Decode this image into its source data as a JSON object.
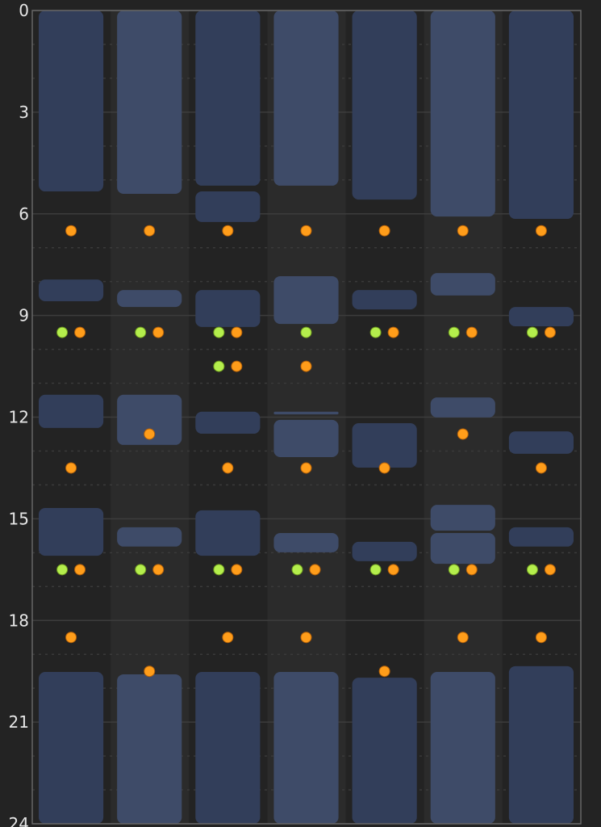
{
  "chart_data": {
    "type": "bar",
    "orientation": "vertical-range",
    "y_axis": {
      "ticks": [
        "0",
        "3",
        "6",
        "9",
        "12",
        "15",
        "18",
        "21",
        "24"
      ],
      "range": [
        0,
        24
      ],
      "inverted": true
    },
    "grid": {
      "major_every": 3,
      "minor_every": 1,
      "minor_style": "dotted"
    },
    "colors": {
      "bar_odd": "#323e5a",
      "bar_even": "#3e4b68",
      "dot_orange": "#ff9d1a",
      "dot_green": "#b4ee4c",
      "background": "#232323",
      "column_alt": "#2b2b2b"
    },
    "columns": [
      {
        "bars": [
          [
            0,
            5.34
          ],
          [
            7.94,
            8.58
          ],
          [
            11.34,
            12.32
          ],
          [
            14.68,
            16.09
          ],
          [
            19.52,
            24
          ]
        ],
        "dots": [
          {
            "h": 6.5,
            "colors": [
              "orange"
            ]
          },
          {
            "h": 9.5,
            "colors": [
              "green",
              "orange"
            ]
          },
          {
            "h": 13.5,
            "colors": [
              "orange"
            ]
          },
          {
            "h": 16.5,
            "colors": [
              "green",
              "orange"
            ]
          },
          {
            "h": 18.5,
            "colors": [
              "orange"
            ]
          }
        ]
      },
      {
        "bars": [
          [
            0,
            5.41
          ],
          [
            8.25,
            8.75
          ],
          [
            11.34,
            12.82
          ],
          [
            15.25,
            15.82
          ],
          [
            19.59,
            24
          ]
        ],
        "dots": [
          {
            "h": 6.5,
            "colors": [
              "orange"
            ]
          },
          {
            "h": 9.5,
            "colors": [
              "green",
              "orange"
            ]
          },
          {
            "h": 12.5,
            "colors": [
              "orange"
            ]
          },
          {
            "h": 16.5,
            "colors": [
              "green",
              "orange"
            ]
          },
          {
            "h": 19.5,
            "colors": [
              "orange"
            ]
          }
        ]
      },
      {
        "bars": [
          [
            0,
            5.17
          ],
          [
            5.34,
            6.24
          ],
          [
            8.25,
            9.34
          ],
          [
            11.84,
            12.49
          ],
          [
            14.75,
            16.09
          ],
          [
            19.52,
            24
          ]
        ],
        "dots": [
          {
            "h": 6.5,
            "colors": [
              "orange"
            ]
          },
          {
            "h": 9.5,
            "colors": [
              "green",
              "orange"
            ]
          },
          {
            "h": 10.5,
            "colors": [
              "green",
              "orange"
            ]
          },
          {
            "h": 13.5,
            "colors": [
              "orange"
            ]
          },
          {
            "h": 16.5,
            "colors": [
              "green",
              "orange"
            ]
          },
          {
            "h": 18.5,
            "colors": [
              "orange"
            ]
          }
        ]
      },
      {
        "bars": [
          [
            0,
            5.17
          ],
          [
            7.84,
            9.25
          ],
          [
            11.84,
            11.92
          ],
          [
            12.08,
            13.18
          ],
          [
            15.42,
            15.99
          ],
          [
            19.52,
            24
          ]
        ],
        "dots": [
          {
            "h": 6.5,
            "colors": [
              "orange"
            ]
          },
          {
            "h": 9.5,
            "colors": [
              "green"
            ]
          },
          {
            "h": 10.5,
            "colors": [
              "orange"
            ]
          },
          {
            "h": 13.5,
            "colors": [
              "orange"
            ]
          },
          {
            "h": 16.5,
            "colors": [
              "green",
              "orange"
            ]
          },
          {
            "h": 18.5,
            "colors": [
              "orange"
            ]
          }
        ]
      },
      {
        "bars": [
          [
            0,
            5.58
          ],
          [
            8.25,
            8.82
          ],
          [
            12.18,
            13.49
          ],
          [
            15.68,
            16.25
          ],
          [
            19.69,
            24
          ]
        ],
        "dots": [
          {
            "h": 6.5,
            "colors": [
              "orange"
            ]
          },
          {
            "h": 9.5,
            "colors": [
              "green",
              "orange"
            ]
          },
          {
            "h": 13.5,
            "colors": [
              "orange"
            ]
          },
          {
            "h": 16.5,
            "colors": [
              "green",
              "orange"
            ]
          },
          {
            "h": 19.5,
            "colors": [
              "orange"
            ]
          }
        ]
      },
      {
        "bars": [
          [
            0,
            6.08
          ],
          [
            7.75,
            8.41
          ],
          [
            11.42,
            12.01
          ],
          [
            14.59,
            15.35
          ],
          [
            15.42,
            16.33
          ],
          [
            19.52,
            24
          ]
        ],
        "dots": [
          {
            "h": 6.5,
            "colors": [
              "orange"
            ]
          },
          {
            "h": 9.5,
            "colors": [
              "green",
              "orange"
            ]
          },
          {
            "h": 12.5,
            "colors": [
              "orange"
            ]
          },
          {
            "h": 16.5,
            "colors": [
              "green",
              "orange"
            ]
          },
          {
            "h": 18.5,
            "colors": [
              "orange"
            ]
          }
        ]
      },
      {
        "bars": [
          [
            0,
            6.15
          ],
          [
            8.75,
            9.32
          ],
          [
            12.42,
            13.08
          ],
          [
            15.25,
            15.82
          ],
          [
            19.35,
            24
          ]
        ],
        "dots": [
          {
            "h": 6.5,
            "colors": [
              "orange"
            ]
          },
          {
            "h": 9.5,
            "colors": [
              "green",
              "orange"
            ]
          },
          {
            "h": 13.5,
            "colors": [
              "orange"
            ]
          },
          {
            "h": 16.5,
            "colors": [
              "green",
              "orange"
            ]
          },
          {
            "h": 18.5,
            "colors": [
              "orange"
            ]
          }
        ]
      }
    ]
  }
}
